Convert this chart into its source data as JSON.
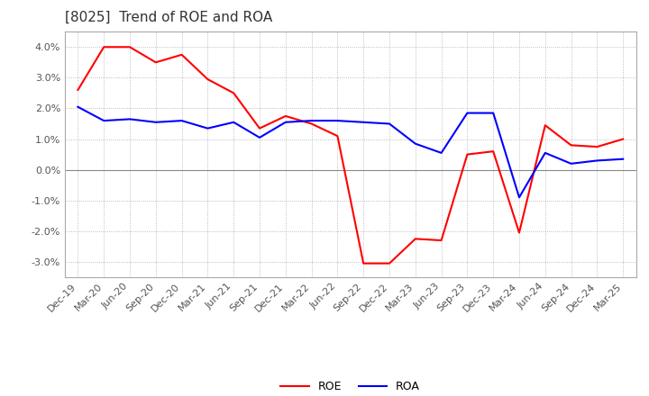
{
  "title": "[8025]  Trend of ROE and ROA",
  "xlabels": [
    "Dec-19",
    "Mar-20",
    "Jun-20",
    "Sep-20",
    "Dec-20",
    "Mar-21",
    "Jun-21",
    "Sep-21",
    "Dec-21",
    "Mar-22",
    "Jun-22",
    "Sep-22",
    "Dec-22",
    "Mar-23",
    "Jun-23",
    "Sep-23",
    "Dec-23",
    "Mar-24",
    "Jun-24",
    "Sep-24",
    "Dec-24",
    "Mar-25"
  ],
  "roe": [
    2.6,
    4.0,
    4.0,
    3.5,
    3.75,
    2.95,
    2.5,
    1.35,
    1.75,
    1.5,
    1.1,
    -3.05,
    -3.05,
    -2.25,
    -2.3,
    0.5,
    0.6,
    -2.05,
    1.45,
    0.8,
    0.75,
    1.0
  ],
  "roa": [
    2.05,
    1.6,
    1.65,
    1.55,
    1.6,
    1.35,
    1.55,
    1.05,
    1.55,
    1.6,
    1.6,
    1.55,
    1.5,
    0.85,
    0.55,
    1.85,
    1.85,
    -0.9,
    0.55,
    0.2,
    0.3,
    0.35
  ],
  "roe_color": "#ff0000",
  "roa_color": "#0000ff",
  "ylim": [
    -3.5,
    4.5
  ],
  "yticks": [
    -3.0,
    -2.0,
    -1.0,
    0.0,
    1.0,
    2.0,
    3.0,
    4.0
  ],
  "grid_color": "#aaaaaa",
  "zero_line_color": "#888888",
  "background_color": "#ffffff",
  "title_fontsize": 11,
  "axis_fontsize": 8,
  "legend_fontsize": 9
}
